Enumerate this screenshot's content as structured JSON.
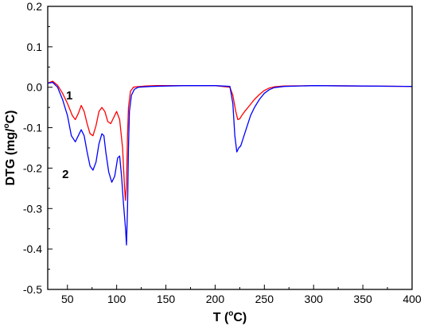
{
  "chart_data": {
    "type": "line",
    "xlabel_main": "T (",
    "xlabel_sup": "o",
    "xlabel_tail": "C)",
    "ylabel": "DTG (mg/",
    "ylabel_sup": "o",
    "ylabel_tail": "C)",
    "xlim": [
      30,
      400
    ],
    "ylim": [
      -0.5,
      0.2
    ],
    "xticks": [
      50,
      100,
      150,
      200,
      250,
      300,
      350,
      400
    ],
    "yticks": [
      0.2,
      0.1,
      0.0,
      -0.1,
      -0.2,
      -0.3,
      -0.4,
      -0.5
    ],
    "ytick_labels": [
      "0.2",
      "0.1",
      "0.0",
      "-0.1",
      "-0.2",
      "-0.3",
      "-0.4",
      "-0.5"
    ],
    "grid": false,
    "annotations": [
      {
        "text": "1",
        "x": 52,
        "y": -0.03
      },
      {
        "text": "2",
        "x": 48,
        "y": -0.225
      }
    ],
    "series": [
      {
        "color": "#ff0000",
        "x": [
          30,
          35,
          40,
          45,
          50,
          55,
          58,
          61,
          64,
          67,
          70,
          73,
          76,
          79,
          82,
          85,
          88,
          91,
          94,
          97,
          100,
          103,
          106,
          108,
          109,
          110,
          111,
          112,
          114,
          117,
          120,
          125,
          130,
          140,
          150,
          170,
          200,
          215,
          218,
          221,
          223,
          225,
          227,
          230,
          235,
          240,
          245,
          250,
          255,
          260,
          270,
          300,
          350,
          400
        ],
        "y": [
          0.01,
          0.015,
          0.005,
          -0.015,
          -0.04,
          -0.07,
          -0.08,
          -0.065,
          -0.045,
          -0.06,
          -0.09,
          -0.115,
          -0.12,
          -0.095,
          -0.06,
          -0.05,
          -0.06,
          -0.085,
          -0.09,
          -0.075,
          -0.06,
          -0.08,
          -0.15,
          -0.25,
          -0.28,
          -0.24,
          -0.12,
          -0.05,
          -0.01,
          0.0,
          0.001,
          0.002,
          0.003,
          0.004,
          0.004,
          0.004,
          0.004,
          0.0,
          -0.02,
          -0.06,
          -0.08,
          -0.078,
          -0.07,
          -0.06,
          -0.045,
          -0.03,
          -0.018,
          -0.008,
          -0.002,
          0.001,
          0.003,
          0.004,
          0.003,
          0.002
        ]
      },
      {
        "color": "#0000ff",
        "x": [
          30,
          35,
          40,
          45,
          50,
          54,
          58,
          61,
          64,
          67,
          70,
          73,
          76,
          79,
          82,
          85,
          87,
          89,
          92,
          95,
          98,
          101,
          103,
          105,
          107,
          109,
          110,
          111,
          112,
          113,
          115,
          118,
          122,
          128,
          135,
          150,
          170,
          200,
          215,
          218,
          220,
          222,
          224,
          226,
          228,
          232,
          236,
          240,
          245,
          250,
          255,
          260,
          270,
          300,
          350,
          400
        ],
        "y": [
          0.01,
          0.012,
          0.0,
          -0.03,
          -0.07,
          -0.12,
          -0.135,
          -0.12,
          -0.105,
          -0.12,
          -0.16,
          -0.195,
          -0.205,
          -0.185,
          -0.14,
          -0.115,
          -0.12,
          -0.16,
          -0.21,
          -0.235,
          -0.22,
          -0.175,
          -0.17,
          -0.22,
          -0.29,
          -0.35,
          -0.39,
          -0.3,
          -0.15,
          -0.06,
          -0.02,
          -0.005,
          0.0,
          0.001,
          0.002,
          0.003,
          0.004,
          0.004,
          0.002,
          -0.04,
          -0.12,
          -0.16,
          -0.15,
          -0.145,
          -0.13,
          -0.1,
          -0.07,
          -0.05,
          -0.03,
          -0.015,
          -0.006,
          -0.001,
          0.002,
          0.004,
          0.003,
          0.002
        ]
      }
    ]
  }
}
